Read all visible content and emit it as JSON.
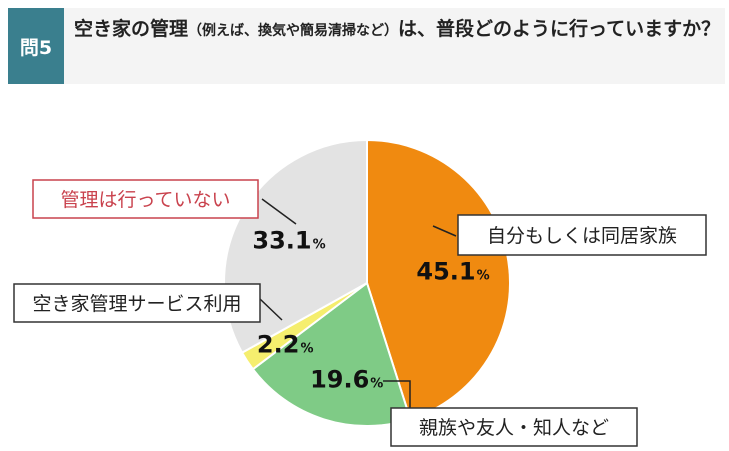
{
  "question": {
    "number_label": "問5",
    "text_main": "空き家の管理",
    "text_paren": "（例えば、換気や簡易清掃など）",
    "text_rest": "は、普段どのように行っていますか？"
  },
  "chart_data": {
    "type": "pie",
    "slices": [
      {
        "label": "自分もしくは同居家族",
        "value": 45.1,
        "display": "45.1",
        "color": "#f08a10",
        "label_color": "#222222"
      },
      {
        "label": "親族や友人・知人など",
        "value": 19.6,
        "display": "19.6",
        "color": "#7fcb86",
        "label_color": "#222222"
      },
      {
        "label": "空き家管理サービス利用",
        "value": 2.2,
        "display": "2.2",
        "color": "#f5ee6e",
        "label_color": "#222222"
      },
      {
        "label": "管理は行っていない",
        "value": 33.1,
        "display": "33.1",
        "color": "#e3e3e3",
        "label_color": "#c9424d"
      }
    ],
    "unit": "%",
    "start": "12 o'clock",
    "direction": "clockwise"
  }
}
